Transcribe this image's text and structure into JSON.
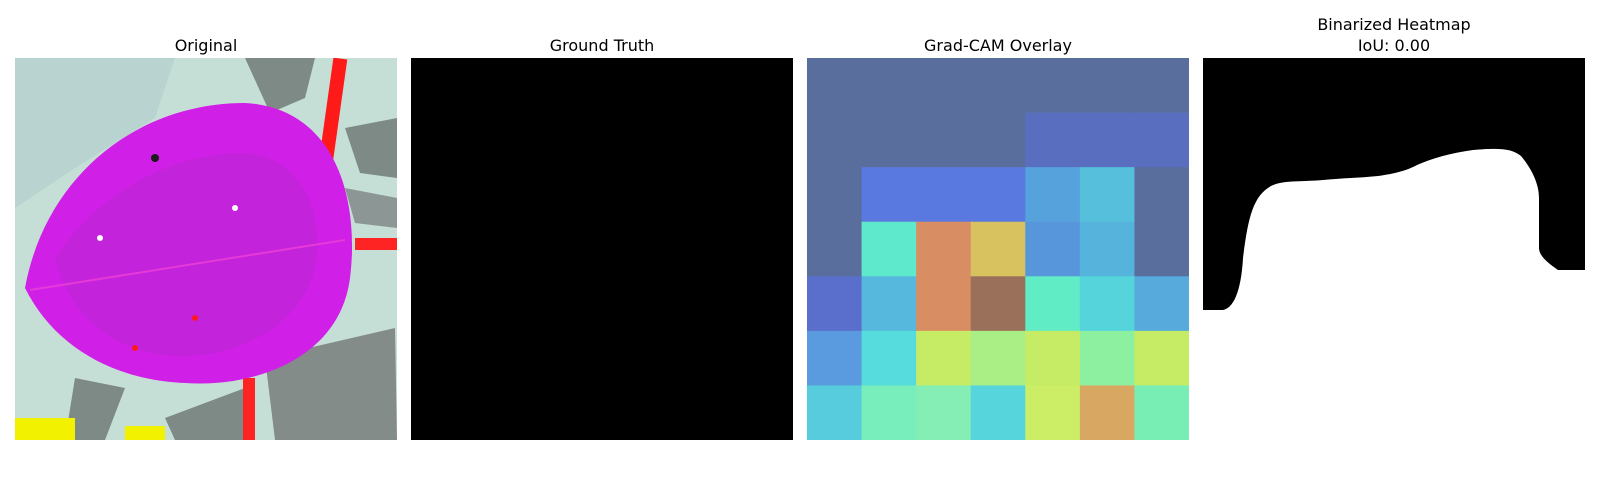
{
  "panels": {
    "original": {
      "title": "Original"
    },
    "ground_truth": {
      "title": "Ground Truth"
    },
    "gradcam": {
      "title": "Grad-CAM Overlay",
      "grid_colors": [
        [
          "#5a6e9e",
          "#5a6e9e",
          "#5a6e9e",
          "#5a6e9e",
          "#5a6e9e",
          "#5a6e9e",
          "#5a6e9e"
        ],
        [
          "#5a6e9e",
          "#5a6e9e",
          "#5a6e9e",
          "#5a6e9e",
          "#5a6ec0",
          "#5a6ec0",
          "#5a6ec0"
        ],
        [
          "#5a6e9e",
          "#5a79e0",
          "#5a79e0",
          "#5a79e0",
          "#56a2dc",
          "#56c0dc",
          "#5a6e9e"
        ],
        [
          "#5a6e9e",
          "#5ee8cc",
          "#d88e62",
          "#d8c260",
          "#5896dc",
          "#56b4dc",
          "#5a6e9e"
        ],
        [
          "#5a6ecc",
          "#56b8dc",
          "#d88e62",
          "#9a705a",
          "#60ecc4",
          "#56d4dc",
          "#56aadc"
        ],
        [
          "#5a9ade",
          "#56dcdc",
          "#c6ec66",
          "#aaee86",
          "#c6ec66",
          "#8cf0a0",
          "#c6ec66"
        ],
        [
          "#56ccdc",
          "#78eebc",
          "#84eeb4",
          "#56d6dc",
          "#ccee66",
          "#d8a862",
          "#78eeb4"
        ]
      ]
    },
    "binarized": {
      "title": "Binarized Heatmap",
      "iou_label": "IoU: 0.00"
    }
  }
}
